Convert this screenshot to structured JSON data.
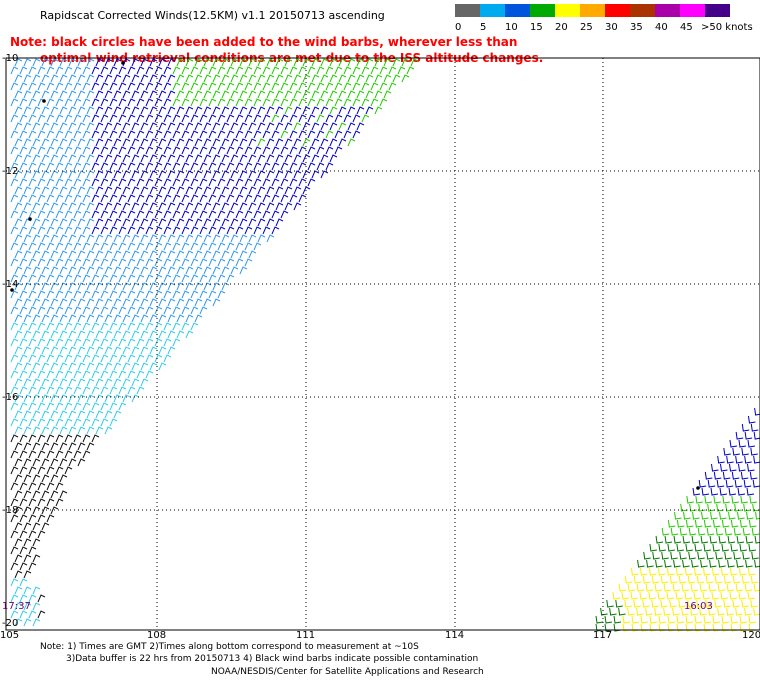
{
  "header": {
    "title": "Rapidscat Corrected Winds(12.5KM) v1.1 20150713 ascending"
  },
  "note": {
    "line1": "Note: black circles have been added to the wind barbs, wherever less than",
    "line2": "optimal wind retrieval conditions are met due to the ISS altitude changes."
  },
  "legend": {
    "unit_label": ">50 knots",
    "bins": [
      {
        "label": "0",
        "color": "#666666"
      },
      {
        "label": "5",
        "color": "#00aaee"
      },
      {
        "label": "10",
        "color": "#0055dd"
      },
      {
        "label": "15",
        "color": "#00aa00"
      },
      {
        "label": "20",
        "color": "#ffff00"
      },
      {
        "label": "25",
        "color": "#ffaa00"
      },
      {
        "label": "30",
        "color": "#ff0000"
      },
      {
        "label": "35",
        "color": "#aa3300"
      },
      {
        "label": "40",
        "color": "#aa00aa"
      },
      {
        "label": "45",
        "color": "#ff00ff"
      },
      {
        "label": "50",
        "color": "#440088"
      }
    ]
  },
  "map": {
    "lon_labels": [
      "105",
      "108",
      "111",
      "114",
      "117",
      "120"
    ],
    "lat_labels": [
      "-10",
      "-12",
      "-14",
      "-16",
      "-18",
      "-20"
    ],
    "time_labels": [
      "17:37",
      "16:03"
    ],
    "colors": {
      "calm_black": "#111111",
      "light_cyan": "#33ccee",
      "mid_blue": "#3399ee",
      "dark_blue": "#0000cc",
      "green": "#22cc00",
      "yellow": "#ffee00",
      "dark_green": "#007700",
      "grid": "#000000"
    }
  },
  "footer": {
    "notes_line1": "Note: 1) Times are GMT 2)Times along bottom correspond to measurement at ~10S",
    "notes_line2": "3)Data buffer is 22 hrs from 20150713 4) Black wind barbs indicate possible contamination",
    "credit": "NOAA/NESDIS/Center for Satellite Applications and Research"
  }
}
